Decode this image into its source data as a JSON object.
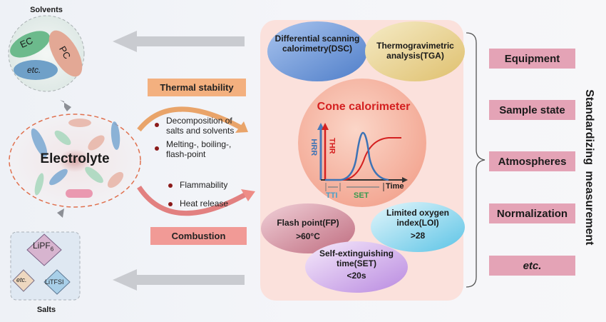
{
  "solvents": {
    "title": "Solvents",
    "items": [
      "EC",
      "PC",
      "etc."
    ]
  },
  "electrolyte": {
    "label": "Electrolyte"
  },
  "salts": {
    "title": "Salts",
    "items": [
      "LiPF",
      "6",
      "etc.",
      "LiTFSI"
    ]
  },
  "thermal": {
    "label": "Thermal stability",
    "bullets": [
      "Decomposition of salts and solvents",
      "Melting-, boiling-, flash-point"
    ]
  },
  "combustion": {
    "label": "Combustion",
    "bullets": [
      "Flammability",
      "Heat release"
    ]
  },
  "methods": {
    "dsc": "Differential scanning calorimetry(DSC)",
    "tga": "Thermogravimetric analysis(TGA)",
    "cone": {
      "title": "Cone calorimeter",
      "hrr": "HRR",
      "thr": "THR",
      "time": "Time",
      "tti": "TTI",
      "set": "SET"
    },
    "fp": {
      "name": "Flash point(FP)",
      "value": ">60°C"
    },
    "loi": {
      "name": "Limited oxygen index(LOI)",
      "value": ">28"
    },
    "set": {
      "name": "Self-extinguishing time(SET)",
      "value": "<20s"
    }
  },
  "standardizing": {
    "title": "Standardizing measurement",
    "items": [
      "Equipment",
      "Sample state",
      "Atmospheres",
      "Normalization",
      "etc."
    ]
  },
  "colors": {
    "thermal": "#f3b07f",
    "combustion": "#f19a96",
    "right_box": "#e4a3b6",
    "panel": "#fbe3df"
  }
}
